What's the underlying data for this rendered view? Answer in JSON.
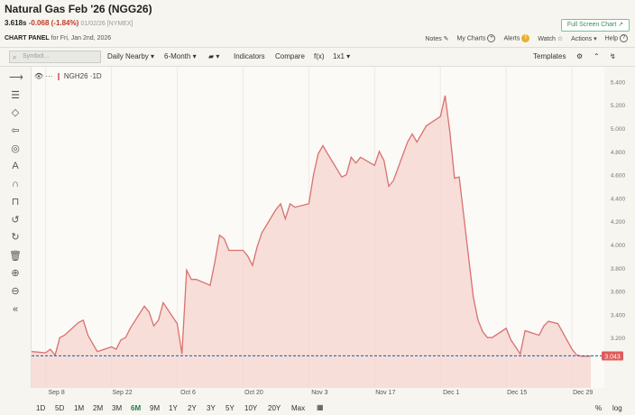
{
  "header": {
    "title": "Natural Gas Feb '26 (NGG26)",
    "last": "3.618s",
    "change": "-0.068 (-1.84%)",
    "date_exchange": "01/02/26 [NYMEX]",
    "panel_label": "CHART PANEL",
    "panel_date": "for Fri, Jan 2nd, 2026",
    "fullscreen_label": "Full Screen Chart ↗",
    "links": {
      "notes": "Notes",
      "mycharts": "My Charts",
      "alerts": "Alerts",
      "watch": "Watch",
      "actions": "Actions ▾",
      "help": "Help"
    }
  },
  "toolbar": {
    "symbol_placeholder": "Symbol...",
    "daily_nearby": "Daily Nearby ▾",
    "period": "6-Month ▾",
    "chart_type": "▾",
    "indicators": "Indicators",
    "compare": "Compare",
    "fx": "f(x)",
    "layout": "1x1 ▾",
    "templates": "Templates"
  },
  "legend": {
    "symbol": "NGH26",
    "interval": "·1D",
    "dots": "···"
  },
  "timeframes": [
    "1D",
    "5D",
    "1M",
    "2M",
    "3M",
    "6M",
    "9M",
    "1Y",
    "2Y",
    "3Y",
    "5Y",
    "10Y",
    "20Y",
    "Max"
  ],
  "active_timeframe": "6M",
  "bottom_right": {
    "percent": "%",
    "log": "log"
  },
  "chart_data": {
    "type": "area",
    "series": [
      {
        "name": "NGH26",
        "x": [
          "2025-09-05",
          "2025-09-08",
          "2025-09-09",
          "2025-09-10",
          "2025-09-11",
          "2025-09-12",
          "2025-09-15",
          "2025-09-16",
          "2025-09-17",
          "2025-09-18",
          "2025-09-19",
          "2025-09-22",
          "2025-09-23",
          "2025-09-24",
          "2025-09-25",
          "2025-09-26",
          "2025-09-29",
          "2025-09-30",
          "2025-10-01",
          "2025-10-02",
          "2025-10-03",
          "2025-10-06",
          "2025-10-07",
          "2025-10-08",
          "2025-10-09",
          "2025-10-10",
          "2025-10-13",
          "2025-10-14",
          "2025-10-15",
          "2025-10-16",
          "2025-10-17",
          "2025-10-20",
          "2025-10-21",
          "2025-10-22",
          "2025-10-23",
          "2025-10-24",
          "2025-10-27",
          "2025-10-28",
          "2025-10-29",
          "2025-10-30",
          "2025-10-31",
          "2025-11-03",
          "2025-11-04",
          "2025-11-05",
          "2025-11-06",
          "2025-11-07",
          "2025-11-10",
          "2025-11-11",
          "2025-11-12",
          "2025-11-13",
          "2025-11-14",
          "2025-11-17",
          "2025-11-18",
          "2025-11-19",
          "2025-11-20",
          "2025-11-21",
          "2025-11-24",
          "2025-11-25",
          "2025-11-26",
          "2025-11-28",
          "2025-12-01",
          "2025-12-02",
          "2025-12-03",
          "2025-12-04",
          "2025-12-05",
          "2025-12-08",
          "2025-12-09",
          "2025-12-10",
          "2025-12-11",
          "2025-12-12",
          "2025-12-15",
          "2025-12-16",
          "2025-12-17",
          "2025-12-18",
          "2025-12-19",
          "2025-12-22",
          "2025-12-23",
          "2025-12-24",
          "2025-12-26",
          "2025-12-29",
          "2025-12-30",
          "2025-12-31",
          "2026-01-02"
        ],
        "y": [
          3.08,
          3.07,
          3.1,
          3.05,
          3.2,
          3.22,
          3.33,
          3.35,
          3.22,
          3.15,
          3.08,
          3.12,
          3.1,
          3.18,
          3.2,
          3.28,
          3.47,
          3.42,
          3.3,
          3.35,
          3.5,
          3.32,
          3.06,
          3.78,
          3.7,
          3.7,
          3.65,
          3.85,
          4.08,
          4.05,
          3.95,
          3.95,
          3.9,
          3.82,
          3.98,
          4.1,
          4.3,
          4.35,
          4.22,
          4.35,
          4.32,
          4.35,
          4.6,
          4.78,
          4.85,
          4.78,
          4.58,
          4.6,
          4.75,
          4.7,
          4.75,
          4.68,
          4.8,
          4.72,
          4.5,
          4.55,
          4.88,
          4.95,
          4.88,
          5.02,
          5.1,
          5.28,
          4.97,
          4.57,
          4.58,
          3.55,
          3.35,
          3.25,
          3.2,
          3.2,
          3.28,
          3.18,
          3.12,
          3.06,
          3.26,
          3.22,
          3.3,
          3.34,
          3.32,
          3.1,
          3.05,
          3.04,
          3.04
        ]
      }
    ],
    "last_value": "3.043",
    "ylim": [
      3.0,
      5.45
    ],
    "y_ticks": [
      "3.200",
      "3.400",
      "3.600",
      "3.800",
      "4.000",
      "4.200",
      "4.400",
      "4.600",
      "4.800",
      "5.000",
      "5.200",
      "5.400"
    ],
    "x_tick_labels": [
      "Sep 8",
      "Sep 22",
      "Oct 6",
      "Oct 20",
      "Nov 3",
      "Nov 17",
      "Dec 1",
      "Dec 15",
      "Dec 29"
    ],
    "x_tick_dates": [
      "2025-09-08",
      "2025-09-22",
      "2025-10-06",
      "2025-10-20",
      "2025-11-03",
      "2025-11-17",
      "2025-12-01",
      "2025-12-15",
      "2025-12-29"
    ],
    "colors": {
      "line": "#d9716f",
      "fill": "#f6d4cf",
      "last_badge": "#e05a5a",
      "last_line": "#2b6cb0"
    }
  }
}
